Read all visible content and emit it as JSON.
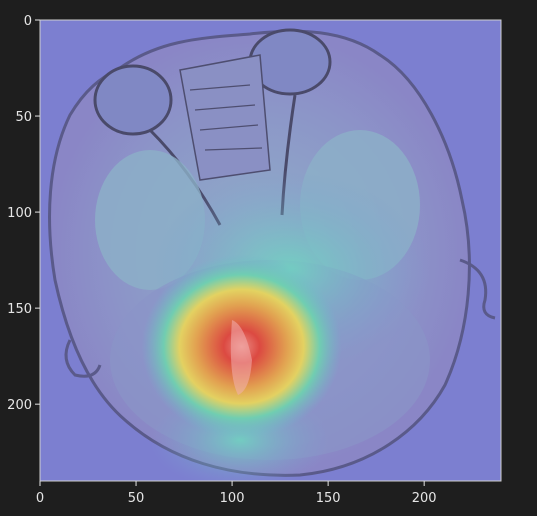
{
  "figure": {
    "image_label": "axial MRI brain scan with heatmap overlay",
    "colors": {
      "background": "#1e1e1e",
      "axis": "#e6e6e6",
      "base_overlay": "#7c7fd0",
      "hot": "#e03c2c",
      "warm": "#e8c64a",
      "cool": "#5ec6b4"
    }
  },
  "chart_data": {
    "type": "heatmap",
    "title": "",
    "xlabel": "",
    "ylabel": "",
    "xlim": [
      0,
      240
    ],
    "ylim": [
      240,
      0
    ],
    "xticks": [
      0,
      50,
      100,
      150,
      200
    ],
    "yticks": [
      0,
      50,
      100,
      150,
      200
    ],
    "grid": false,
    "hotspot": {
      "x": 105,
      "y": 170
    }
  }
}
